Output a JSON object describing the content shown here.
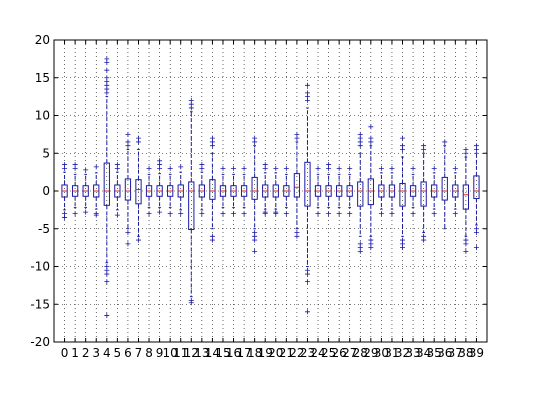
{
  "chart_data": {
    "type": "boxplot",
    "title": "",
    "xlabel": "",
    "ylabel": "",
    "ylim": [
      -20,
      20
    ],
    "yticks": [
      -20,
      -15,
      -10,
      -5,
      0,
      5,
      10,
      15,
      20
    ],
    "grid": true,
    "categories": [
      "0",
      "1",
      "2",
      "3",
      "4",
      "5",
      "6",
      "7",
      "8",
      "9",
      "10",
      "11",
      "12",
      "13",
      "14",
      "15",
      "16",
      "17",
      "18",
      "19",
      "20",
      "21",
      "22",
      "23",
      "24",
      "25",
      "26",
      "27",
      "28",
      "29",
      "30",
      "31",
      "32",
      "33",
      "34",
      "35",
      "36",
      "37",
      "38",
      "39"
    ],
    "boxes": [
      {
        "q1": -0.8,
        "median": 0,
        "q3": 0.8,
        "whisker_low": -2.5,
        "whisker_high": 2.5,
        "outliers": [
          -3.5,
          -3,
          3,
          3.5
        ]
      },
      {
        "q1": -0.7,
        "median": 0,
        "q3": 0.7,
        "whisker_low": -2.2,
        "whisker_high": 2.2,
        "outliers": [
          -3,
          3,
          3.5
        ]
      },
      {
        "q1": -0.7,
        "median": 0,
        "q3": 0.7,
        "whisker_low": -2.2,
        "whisker_high": 2.2,
        "outliers": [
          -2.8,
          2.8
        ]
      },
      {
        "q1": -0.8,
        "median": 0,
        "q3": 0.8,
        "whisker_low": -2.4,
        "whisker_high": 2.4,
        "outliers": [
          -3.2,
          -3,
          3.2
        ]
      },
      {
        "q1": -1.9,
        "median": 0,
        "q3": 3.7,
        "whisker_low": -9.5,
        "whisker_high": 12.5,
        "outliers": [
          -16.5,
          -12,
          -11,
          -10.5,
          -10,
          13,
          13.5,
          14,
          14.5,
          15,
          16,
          17,
          17.5
        ]
      },
      {
        "q1": -0.8,
        "median": 0,
        "q3": 0.8,
        "whisker_low": -2.5,
        "whisker_high": 2.5,
        "outliers": [
          -3.2,
          3,
          3.5
        ]
      },
      {
        "q1": -1.2,
        "median": 0,
        "q3": 1.6,
        "whisker_low": -5,
        "whisker_high": 5.5,
        "outliers": [
          -7,
          -5.5,
          6,
          6.5,
          7.5
        ]
      },
      {
        "q1": -1.7,
        "median": 0.2,
        "q3": 1.5,
        "whisker_low": -6,
        "whisker_high": 5.5,
        "outliers": [
          -6.5,
          6.5,
          7
        ]
      },
      {
        "q1": -0.7,
        "median": 0,
        "q3": 0.7,
        "whisker_low": -2.2,
        "whisker_high": 2.2,
        "outliers": [
          -3,
          3
        ]
      },
      {
        "q1": -0.7,
        "median": 0,
        "q3": 0.7,
        "whisker_low": -2.2,
        "whisker_high": 2.3,
        "outliers": [
          -2.8,
          3,
          3.5,
          4
        ]
      },
      {
        "q1": -0.7,
        "median": 0,
        "q3": 0.7,
        "whisker_low": -2.2,
        "whisker_high": 2.2,
        "outliers": [
          -3,
          3
        ]
      },
      {
        "q1": -0.8,
        "median": 0,
        "q3": 0.8,
        "whisker_low": -2.5,
        "whisker_high": 2.5,
        "outliers": [
          -3,
          3.2
        ]
      },
      {
        "q1": -5.1,
        "median": 0,
        "q3": 1.2,
        "whisker_low": -14,
        "whisker_high": 10.5,
        "outliers": [
          -14.8,
          -14.5,
          11,
          11.5,
          12
        ]
      },
      {
        "q1": -0.8,
        "median": 0,
        "q3": 0.8,
        "whisker_low": -2.5,
        "whisker_high": 2.5,
        "outliers": [
          -3,
          3,
          3.5
        ]
      },
      {
        "q1": -1.1,
        "median": 0,
        "q3": 1.5,
        "whisker_low": -5,
        "whisker_high": 5,
        "outliers": [
          -6.5,
          -6,
          6,
          6.5,
          7
        ]
      },
      {
        "q1": -0.7,
        "median": 0,
        "q3": 0.7,
        "whisker_low": -2.2,
        "whisker_high": 2.2,
        "outliers": [
          -3,
          3
        ]
      },
      {
        "q1": -0.7,
        "median": 0,
        "q3": 0.7,
        "whisker_low": -2.2,
        "whisker_high": 2.2,
        "outliers": [
          -3,
          3
        ]
      },
      {
        "q1": -0.7,
        "median": 0,
        "q3": 0.7,
        "whisker_low": -2.2,
        "whisker_high": 2.2,
        "outliers": [
          -3,
          3
        ]
      },
      {
        "q1": -1.1,
        "median": 0,
        "q3": 1.8,
        "whisker_low": -5,
        "whisker_high": 6,
        "outliers": [
          -8,
          -6.5,
          -6,
          -5.5,
          6.5,
          7
        ]
      },
      {
        "q1": -0.8,
        "median": 0,
        "q3": 0.8,
        "whisker_low": -2.4,
        "whisker_high": 2.4,
        "outliers": [
          -3,
          -2.8,
          3,
          3.5
        ]
      },
      {
        "q1": -0.8,
        "median": 0,
        "q3": 0.8,
        "whisker_low": -2.4,
        "whisker_high": 2.4,
        "outliers": [
          -3,
          -2.8,
          3
        ]
      },
      {
        "q1": -0.7,
        "median": 0,
        "q3": 0.7,
        "whisker_low": -2.2,
        "whisker_high": 2.2,
        "outliers": [
          -3,
          3
        ]
      },
      {
        "q1": -0.8,
        "median": 0.5,
        "q3": 2.3,
        "whisker_low": -5,
        "whisker_high": 6.5,
        "outliers": [
          -6,
          -5.5,
          7,
          7.5
        ]
      },
      {
        "q1": -2,
        "median": 0,
        "q3": 3.8,
        "whisker_low": -10,
        "whisker_high": 11,
        "outliers": [
          -16,
          -12,
          -11,
          -10.5,
          12,
          12.5,
          13,
          14
        ]
      },
      {
        "q1": -0.7,
        "median": 0,
        "q3": 0.7,
        "whisker_low": -2.2,
        "whisker_high": 2.2,
        "outliers": [
          -3,
          3
        ]
      },
      {
        "q1": -0.7,
        "median": 0,
        "q3": 0.7,
        "whisker_low": -2.2,
        "whisker_high": 2.2,
        "outliers": [
          -3,
          3,
          3.5
        ]
      },
      {
        "q1": -0.7,
        "median": 0,
        "q3": 0.7,
        "whisker_low": -2.2,
        "whisker_high": 2.2,
        "outliers": [
          -3,
          3
        ]
      },
      {
        "q1": -0.7,
        "median": 0,
        "q3": 0.7,
        "whisker_low": -2.2,
        "whisker_high": 2.2,
        "outliers": [
          -3,
          3
        ]
      },
      {
        "q1": -2,
        "median": 0,
        "q3": 1.2,
        "whisker_low": -6,
        "whisker_high": 5,
        "outliers": [
          -8,
          -7.5,
          -7,
          6,
          6.5,
          7,
          7.5
        ]
      },
      {
        "q1": -1.8,
        "median": 0,
        "q3": 1.6,
        "whisker_low": -6,
        "whisker_high": 6,
        "outliers": [
          -7.5,
          -7,
          -6.5,
          6.5,
          7,
          8.5
        ]
      },
      {
        "q1": -0.8,
        "median": 0,
        "q3": 0.8,
        "whisker_low": -2.4,
        "whisker_high": 2.4,
        "outliers": [
          -3,
          3
        ]
      },
      {
        "q1": -0.8,
        "median": 0,
        "q3": 0.8,
        "whisker_low": -2.4,
        "whisker_high": 2.4,
        "outliers": [
          -3,
          3
        ]
      },
      {
        "q1": -2,
        "median": 0,
        "q3": 1,
        "whisker_low": -6,
        "whisker_high": 4.5,
        "outliers": [
          -7.5,
          -7,
          -6.5,
          5.5,
          6,
          7
        ]
      },
      {
        "q1": -0.7,
        "median": 0,
        "q3": 0.7,
        "whisker_low": -2.2,
        "whisker_high": 2.2,
        "outliers": [
          -3,
          3
        ]
      },
      {
        "q1": -2,
        "median": 0,
        "q3": 1.2,
        "whisker_low": -5.5,
        "whisker_high": 5,
        "outliers": [
          -6.5,
          -6,
          5.5,
          6
        ]
      },
      {
        "q1": -0.8,
        "median": 0,
        "q3": 0.8,
        "whisker_low": -2.4,
        "whisker_high": 2.4,
        "outliers": [
          -3,
          3
        ]
      },
      {
        "q1": -1.2,
        "median": 0,
        "q3": 1.8,
        "whisker_low": -5,
        "whisker_high": 6,
        "outliers": [
          6.5
        ]
      },
      {
        "q1": -0.8,
        "median": 0,
        "q3": 0.8,
        "whisker_low": -2.4,
        "whisker_high": 2.4,
        "outliers": [
          -3,
          3
        ]
      },
      {
        "q1": -2.4,
        "median": -0.5,
        "q3": 0.8,
        "whisker_low": -6,
        "whisker_high": 4.5,
        "outliers": [
          -8,
          -7,
          -6.5,
          5,
          5.5
        ]
      },
      {
        "q1": -1,
        "median": 0,
        "q3": 2,
        "whisker_low": -4.5,
        "whisker_high": 5,
        "outliers": [
          -7.5,
          -5.5,
          -5,
          5.5,
          6
        ]
      }
    ]
  }
}
